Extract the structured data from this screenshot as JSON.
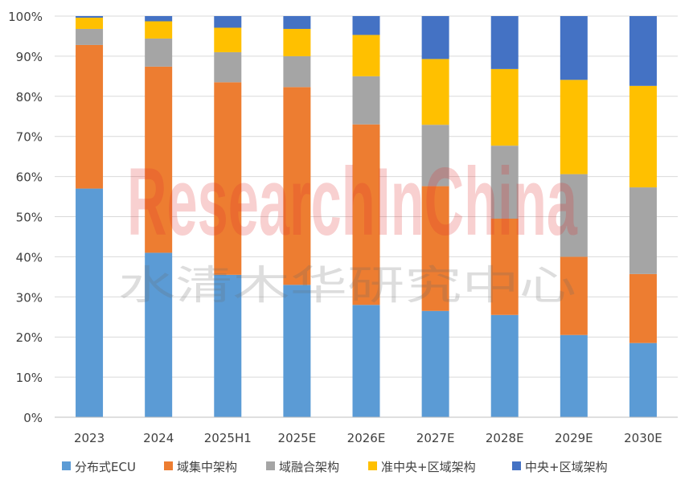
{
  "chart_data": {
    "type": "bar",
    "stacked": true,
    "percent": true,
    "title": "",
    "xlabel": "",
    "ylabel": "",
    "ylim": [
      0,
      100
    ],
    "yticks": [
      "0%",
      "10%",
      "20%",
      "30%",
      "40%",
      "50%",
      "60%",
      "70%",
      "80%",
      "90%",
      "100%"
    ],
    "categories": [
      "2023",
      "2024",
      "2025H1",
      "2025E",
      "2026E",
      "2027E",
      "2028E",
      "2029E",
      "2030E"
    ],
    "series": [
      {
        "name": "分布式ECU",
        "color": "#5B9BD5",
        "values": [
          57,
          41,
          35.5,
          33,
          28,
          26.5,
          25.5,
          20.5,
          18.5
        ]
      },
      {
        "name": "域集中架构",
        "color": "#ED7D31",
        "values": [
          35.8,
          46.4,
          48,
          49.3,
          45,
          31.1,
          24,
          19.5,
          17.2
        ]
      },
      {
        "name": "域融合架构",
        "color": "#A5A5A5",
        "values": [
          4,
          7,
          7.5,
          7.7,
          12,
          15.3,
          18.2,
          20.6,
          21.6
        ]
      },
      {
        "name": "准中央+区域架构",
        "color": "#FFC000",
        "values": [
          2.8,
          4.3,
          6.1,
          6.8,
          10.3,
          16.4,
          19.1,
          23.5,
          25.3
        ]
      },
      {
        "name": "中央+区域架构",
        "color": "#4472C4",
        "values": [
          0.4,
          1.3,
          2.9,
          3.2,
          4.7,
          10.7,
          13.2,
          15.9,
          17.4
        ]
      }
    ],
    "legend_position": "bottom",
    "grid": true
  },
  "watermark": {
    "english": "ResearchInChina",
    "chinese": "水清木华研究中心"
  }
}
